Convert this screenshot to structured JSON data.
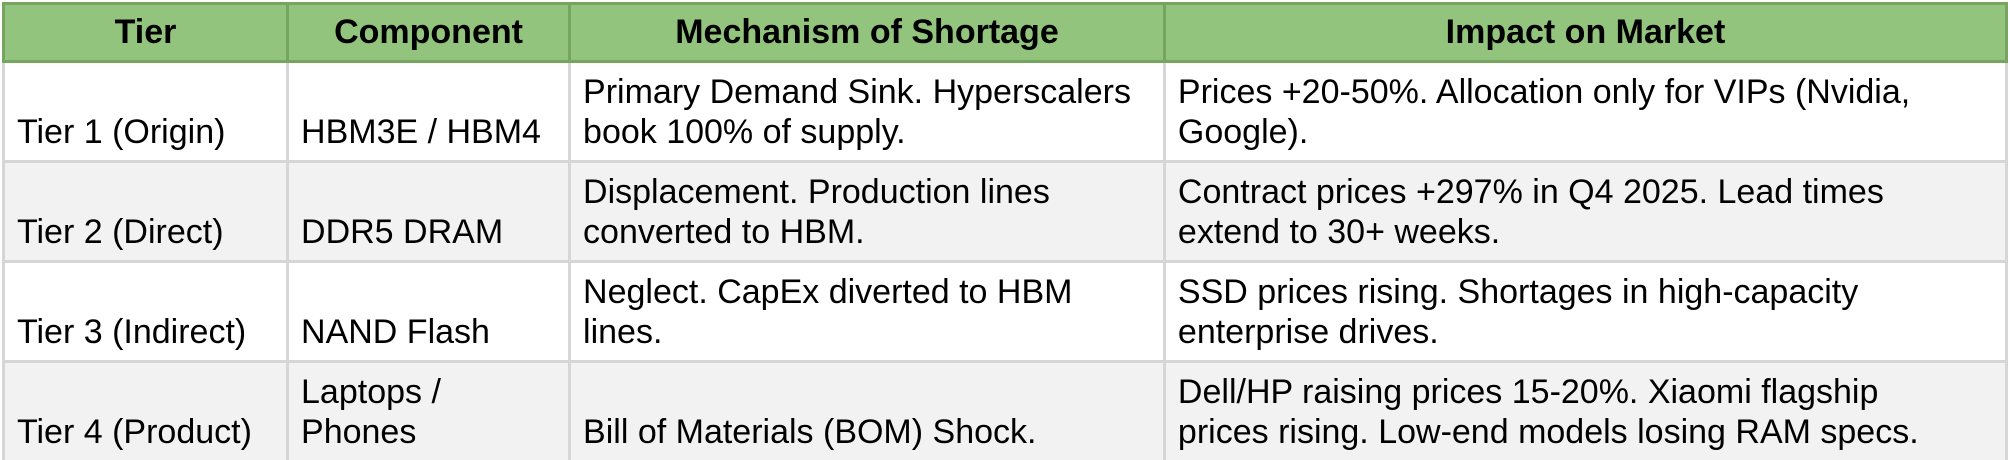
{
  "table": {
    "headers": [
      "Tier",
      "Component",
      "Mechanism of Shortage",
      "Impact on Market"
    ],
    "rows": [
      {
        "tier": "Tier 1 (Origin)",
        "component": "HBM3E / HBM4",
        "mechanism": "Primary Demand Sink. Hyperscalers\nbook 100% of supply.",
        "impact": "Prices +20-50%. Allocation only for VIPs (Nvidia,\nGoogle)."
      },
      {
        "tier": "Tier 2 (Direct)",
        "component": "DDR5 DRAM",
        "mechanism": "Displacement. Production lines\nconverted to HBM.",
        "impact": "Contract prices +297% in Q4 2025. Lead times\nextend to 30+ weeks."
      },
      {
        "tier": "Tier 3 (Indirect)",
        "component": "NAND Flash",
        "mechanism": "Neglect. CapEx diverted to HBM\nlines.",
        "impact": "SSD prices rising. Shortages in high-capacity\nenterprise drives."
      },
      {
        "tier": "Tier 4 (Product)",
        "component": "Laptops /\nPhones",
        "mechanism": "Bill of Materials (BOM) Shock.",
        "impact": "Dell/HP raising prices 15-20%. Xiaomi flagship\nprices rising. Low-end models losing RAM specs."
      }
    ]
  },
  "colors": {
    "header_bg": "#93c47d",
    "header_border": "#76a55f",
    "body_border": "#d6d6d6",
    "row_bg": "#ffffff",
    "row_alt_bg": "#f2f2f2",
    "text": "#000000"
  }
}
